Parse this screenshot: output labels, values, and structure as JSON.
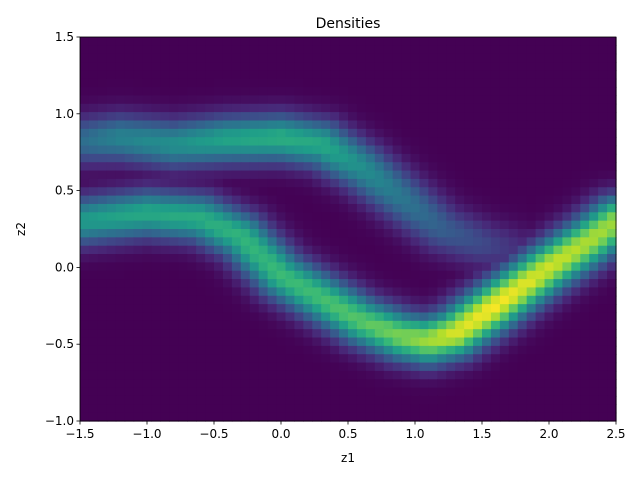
{
  "chart_data": {
    "type": "heatmap",
    "title": "Densities",
    "xlabel": "z1",
    "ylabel": "z2",
    "xlim": [
      -1.5,
      2.5
    ],
    "ylim": [
      -1.0,
      1.5
    ],
    "x_ticks": [
      {
        "value": -1.5,
        "label": "−1.5"
      },
      {
        "value": -1.0,
        "label": "−1.0"
      },
      {
        "value": -0.5,
        "label": "−0.5"
      },
      {
        "value": 0.0,
        "label": "0.0"
      },
      {
        "value": 0.5,
        "label": "0.5"
      },
      {
        "value": 1.0,
        "label": "1.0"
      },
      {
        "value": 1.5,
        "label": "1.5"
      },
      {
        "value": 2.0,
        "label": "2.0"
      },
      {
        "value": 2.5,
        "label": "2.5"
      }
    ],
    "y_ticks": [
      {
        "value": -1.0,
        "label": "−1.0"
      },
      {
        "value": -0.5,
        "label": "−0.5"
      },
      {
        "value": 0.0,
        "label": "0.0"
      },
      {
        "value": 0.5,
        "label": "0.5"
      },
      {
        "value": 1.0,
        "label": "1.0"
      },
      {
        "value": 1.5,
        "label": "1.5"
      }
    ],
    "colormap": "viridis",
    "grid": false,
    "density_ridges": [
      {
        "points": [
          [
            -1.5,
            0.3
          ],
          [
            -1.0,
            0.35
          ],
          [
            -0.6,
            0.32
          ],
          [
            -0.3,
            0.2
          ],
          [
            0.0,
            -0.05
          ],
          [
            0.3,
            -0.2
          ],
          [
            0.6,
            -0.35
          ],
          [
            0.9,
            -0.45
          ],
          [
            1.1,
            -0.48
          ],
          [
            1.3,
            -0.43
          ],
          [
            1.6,
            -0.25
          ],
          [
            2.0,
            0.0
          ],
          [
            2.3,
            0.17
          ],
          [
            2.5,
            0.3
          ]
        ],
        "peak": [
          0.55,
          0.6,
          0.62,
          0.65,
          0.68,
          0.7,
          0.74,
          0.8,
          0.86,
          0.95,
          1.0,
          0.93,
          0.88,
          0.85
        ]
      },
      {
        "points": [
          [
            -1.5,
            0.82
          ],
          [
            -1.2,
            0.84
          ],
          [
            -0.8,
            0.8
          ],
          [
            -0.4,
            0.83
          ],
          [
            0.0,
            0.84
          ],
          [
            0.3,
            0.8
          ],
          [
            0.6,
            0.65
          ],
          [
            0.9,
            0.45
          ],
          [
            1.2,
            0.25
          ],
          [
            1.5,
            0.15
          ],
          [
            1.8,
            0.1
          ]
        ],
        "peak": [
          0.35,
          0.45,
          0.5,
          0.58,
          0.62,
          0.6,
          0.5,
          0.4,
          0.3,
          0.22,
          0.12
        ]
      }
    ]
  }
}
